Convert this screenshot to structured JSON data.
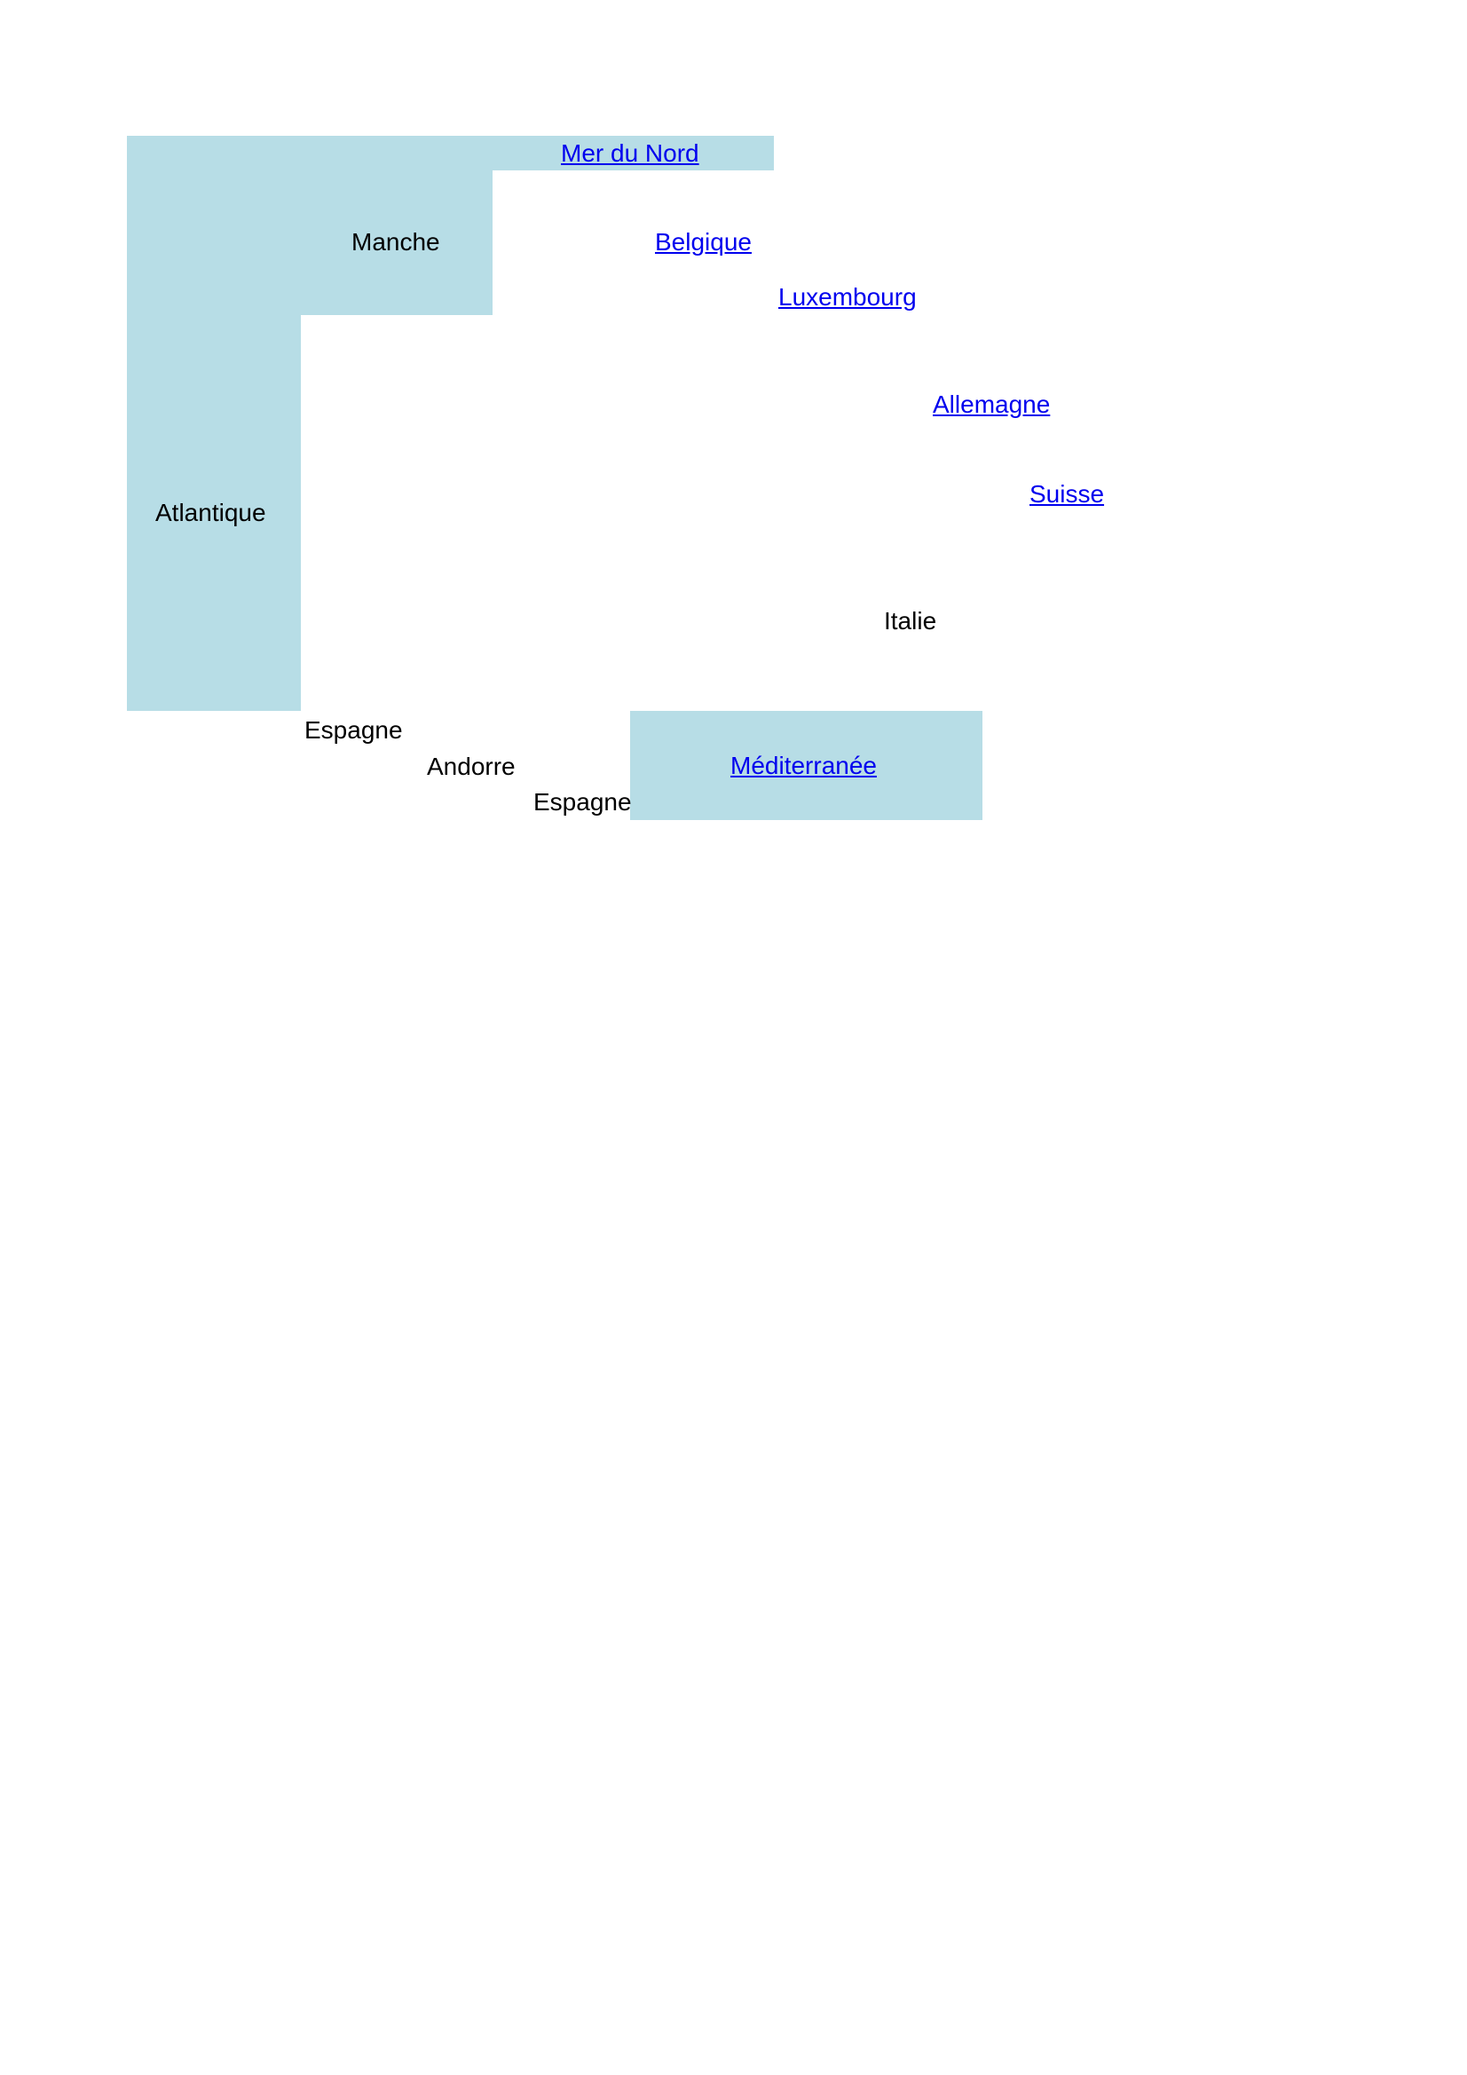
{
  "map": {
    "seas": {
      "mer_du_nord": "Mer du Nord",
      "manche": "Manche",
      "atlantique": "Atlantique",
      "mediterranee": "Méditerranée"
    },
    "countries": {
      "belgique": "Belgique",
      "luxembourg": "Luxembourg",
      "allemagne": "Allemagne",
      "suisse": "Suisse",
      "italie": "Italie",
      "espagne_west": "Espagne",
      "andorre": "Andorre",
      "espagne_east": "Espagne"
    },
    "colors": {
      "sea_fill": "#b7dde6",
      "link": "#0000ee",
      "text": "#000000",
      "background": "#ffffff"
    }
  }
}
